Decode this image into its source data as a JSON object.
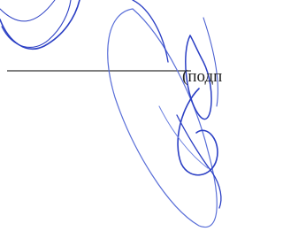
{
  "document": {
    "caption": "(подп"
  }
}
